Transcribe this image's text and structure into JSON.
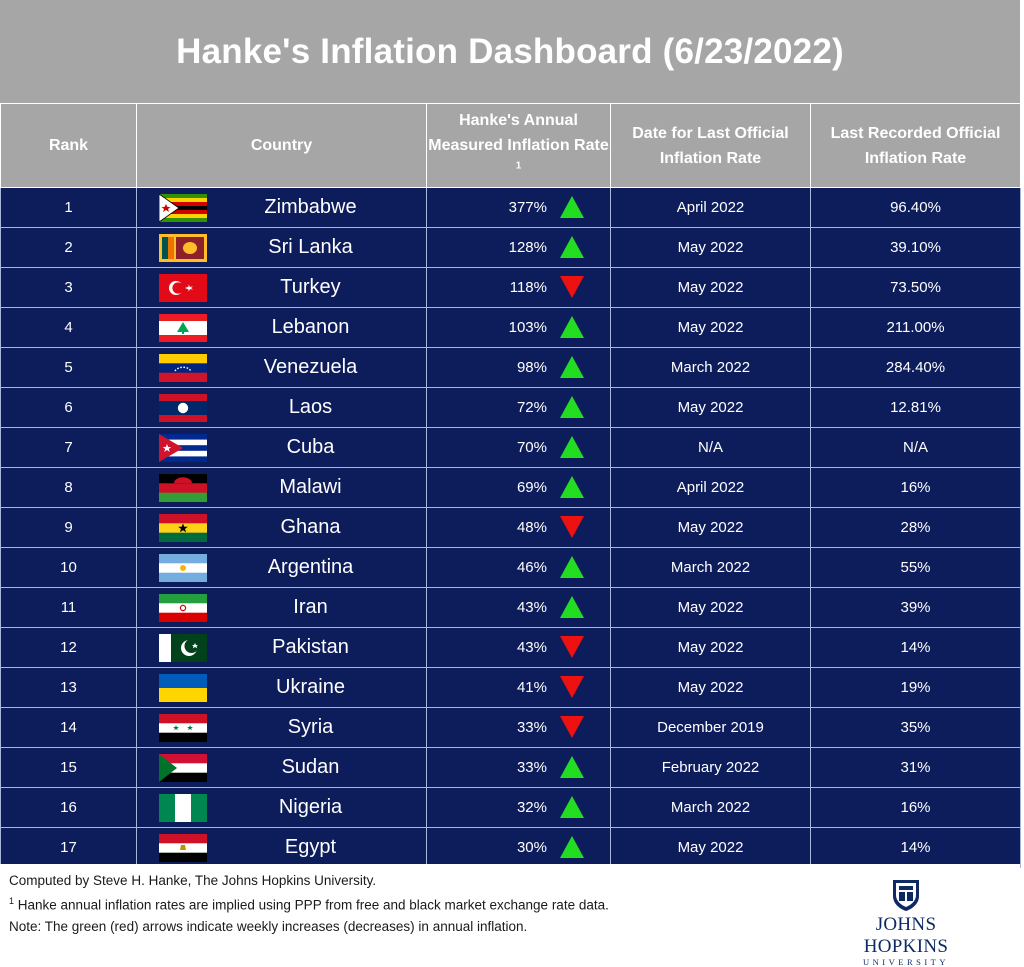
{
  "title": "Hanke's Inflation Dashboard (6/23/2022)",
  "colors": {
    "header_bg": "#a6a6a6",
    "row_bg": "#0d1d5c",
    "up_arrow": "#22dd22",
    "down_arrow": "#ee1111"
  },
  "chart_data": {
    "type": "table",
    "columns": [
      "Rank",
      "Country",
      "Hanke's Annual Measured Inflation Rate",
      "Date for Last Official Inflation Rate",
      "Last Recorded Official Inflation Rate"
    ],
    "header_note_marker": "1",
    "rows": [
      {
        "rank": "1",
        "country": "Zimbabwe",
        "hanke_rate": "377%",
        "trend": "up",
        "official_date": "April 2022",
        "official_rate": "96.40%",
        "flag": "zimbabwe-flag"
      },
      {
        "rank": "2",
        "country": "Sri Lanka",
        "hanke_rate": "128%",
        "trend": "up",
        "official_date": "May 2022",
        "official_rate": "39.10%",
        "flag": "sri-lanka-flag"
      },
      {
        "rank": "3",
        "country": "Turkey",
        "hanke_rate": "118%",
        "trend": "down",
        "official_date": "May 2022",
        "official_rate": "73.50%",
        "flag": "turkey-flag"
      },
      {
        "rank": "4",
        "country": "Lebanon",
        "hanke_rate": "103%",
        "trend": "up",
        "official_date": "May 2022",
        "official_rate": "211.00%",
        "flag": "lebanon-flag"
      },
      {
        "rank": "5",
        "country": "Venezuela",
        "hanke_rate": "98%",
        "trend": "up",
        "official_date": "March 2022",
        "official_rate": "284.40%",
        "flag": "venezuela-flag"
      },
      {
        "rank": "6",
        "country": "Laos",
        "hanke_rate": "72%",
        "trend": "up",
        "official_date": "May 2022",
        "official_rate": "12.81%",
        "flag": "laos-flag"
      },
      {
        "rank": "7",
        "country": "Cuba",
        "hanke_rate": "70%",
        "trend": "up",
        "official_date": "N/A",
        "official_rate": "N/A",
        "flag": "cuba-flag"
      },
      {
        "rank": "8",
        "country": "Malawi",
        "hanke_rate": "69%",
        "trend": "up",
        "official_date": "April 2022",
        "official_rate": "16%",
        "flag": "malawi-flag"
      },
      {
        "rank": "9",
        "country": "Ghana",
        "hanke_rate": "48%",
        "trend": "down",
        "official_date": "May 2022",
        "official_rate": "28%",
        "flag": "ghana-flag"
      },
      {
        "rank": "10",
        "country": "Argentina",
        "hanke_rate": "46%",
        "trend": "up",
        "official_date": "March 2022",
        "official_rate": "55%",
        "flag": "argentina-flag"
      },
      {
        "rank": "11",
        "country": "Iran",
        "hanke_rate": "43%",
        "trend": "up",
        "official_date": "May 2022",
        "official_rate": "39%",
        "flag": "iran-flag"
      },
      {
        "rank": "12",
        "country": "Pakistan",
        "hanke_rate": "43%",
        "trend": "down",
        "official_date": "May 2022",
        "official_rate": "14%",
        "flag": "pakistan-flag"
      },
      {
        "rank": "13",
        "country": "Ukraine",
        "hanke_rate": "41%",
        "trend": "down",
        "official_date": "May 2022",
        "official_rate": "19%",
        "flag": "ukraine-flag"
      },
      {
        "rank": "14",
        "country": "Syria",
        "hanke_rate": "33%",
        "trend": "down",
        "official_date": "December 2019",
        "official_rate": "35%",
        "flag": "syria-flag"
      },
      {
        "rank": "15",
        "country": "Sudan",
        "hanke_rate": "33%",
        "trend": "up",
        "official_date": "February 2022",
        "official_rate": "31%",
        "flag": "sudan-flag"
      },
      {
        "rank": "16",
        "country": "Nigeria",
        "hanke_rate": "32%",
        "trend": "up",
        "official_date": "March 2022",
        "official_rate": "16%",
        "flag": "nigeria-flag"
      },
      {
        "rank": "17",
        "country": "Egypt",
        "hanke_rate": "30%",
        "trend": "up",
        "official_date": "May 2022",
        "official_rate": "14%",
        "flag": "egypt-flag"
      }
    ]
  },
  "footer": {
    "credit": "Computed by Steve H. Hanke, The Johns Hopkins University.",
    "note1_marker": "1",
    "note1": " Hanke annual inflation rates are implied using PPP from free and black market exchange rate data.",
    "note2": "Note: The green (red) arrows indicate weekly increases (decreases) in annual inflation.",
    "logo_name": "JOHNS HOPKINS",
    "logo_sub": "UNIVERSITY"
  }
}
